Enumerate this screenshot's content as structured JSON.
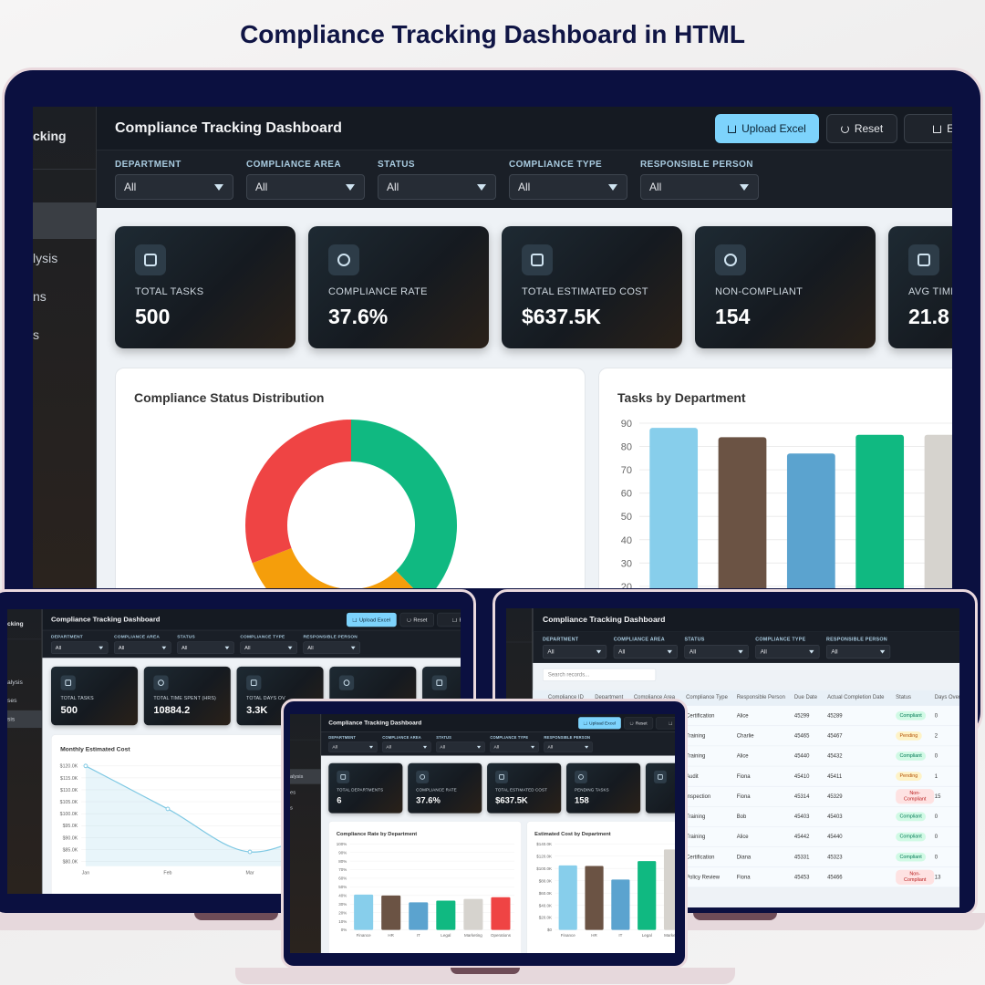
{
  "heading": "Compliance Tracking Dashboard in HTML",
  "screens": [
    {
      "sidebar": {
        "brand": "cking",
        "items": [
          "lysis",
          "ns",
          "s"
        ],
        "active": 0
      },
      "header": {
        "title": "Compliance Tracking Dashboard",
        "buttons": [
          "Upload Excel",
          "Reset",
          "Exp"
        ]
      },
      "filters": [
        {
          "label": "DEPARTMENT",
          "value": "All"
        },
        {
          "label": "COMPLIANCE AREA",
          "value": "All"
        },
        {
          "label": "STATUS",
          "value": "All"
        },
        {
          "label": "COMPLIANCE TYPE",
          "value": "All"
        },
        {
          "label": "RESPONSIBLE PERSON",
          "value": "All"
        }
      ],
      "kpis": [
        {
          "label": "TOTAL TASKS",
          "value": "500"
        },
        {
          "label": "COMPLIANCE RATE",
          "value": "37.6%"
        },
        {
          "label": "TOTAL ESTIMATED COST",
          "value": "$637.5K"
        },
        {
          "label": "NON-COMPLIANT",
          "value": "154"
        },
        {
          "label": "AVG TIME",
          "value": "21.8"
        }
      ],
      "charts": [
        {
          "type": "pie",
          "title": "Compliance Status Distribution",
          "categories": [
            null,
            null,
            null
          ],
          "values": [
            188,
            158,
            154
          ],
          "colors": [
            "#10b981",
            "#f59e0b",
            "#ef4444"
          ]
        },
        {
          "type": "bar",
          "title": "Tasks by Department",
          "categories": [
            null,
            null,
            null,
            null,
            null
          ],
          "values": [
            88,
            84,
            77,
            85,
            85
          ],
          "colors": [
            "#87ceeb",
            "#6b5344",
            "#5ba3cf",
            "#10b981",
            "#d6d3ce"
          ],
          "ylim": [
            0,
            90
          ],
          "yticks": [
            20,
            30,
            40,
            50,
            60,
            70,
            80,
            90
          ],
          "grid": true
        }
      ]
    },
    {
      "sidebar": {
        "brand": "cking",
        "items": [
          "alysis",
          "ses",
          "sis"
        ],
        "active": 3
      },
      "header": {
        "title": "Compliance Tracking Dashboard",
        "buttons": [
          "Upload Excel",
          "Reset",
          "Ex"
        ]
      },
      "filters": [
        {
          "label": "DEPARTMENT",
          "value": "All"
        },
        {
          "label": "COMPLIANCE AREA",
          "value": "All"
        },
        {
          "label": "STATUS",
          "value": "All"
        },
        {
          "label": "COMPLIANCE TYPE",
          "value": "All"
        },
        {
          "label": "RESPONSIBLE PERSON",
          "value": "All"
        }
      ],
      "kpis": [
        {
          "label": "TOTAL TASKS",
          "value": "500"
        },
        {
          "label": "TOTAL TIME SPENT (HRS)",
          "value": "10884.2"
        },
        {
          "label": "TOTAL DAYS OV",
          "value": "3.3K"
        }
      ],
      "charts": [
        {
          "type": "line",
          "title": "Monthly Estimated Cost",
          "categories": [
            "Jan",
            "Feb",
            "Mar",
            null
          ],
          "values": [
            120000,
            102000,
            84000,
            96000
          ],
          "color": "#7ec8e3",
          "ylim": [
            78000,
            122000
          ],
          "yticks": [
            {
              "value": 80000,
              "label": "$80.0K"
            },
            {
              "value": 85000,
              "label": "$85.0K"
            },
            {
              "value": 90000,
              "label": "$90.0K"
            },
            {
              "value": 95000,
              "label": "$95.0K"
            },
            {
              "value": 100000,
              "label": "$100.0K"
            },
            {
              "value": 105000,
              "label": "$105.0K"
            },
            {
              "value": 110000,
              "label": "$110.0K"
            },
            {
              "value": 115000,
              "label": "$115.0K"
            },
            {
              "value": 120000,
              "label": "$120.0K"
            }
          ],
          "grid": true
        }
      ]
    },
    {
      "header": {
        "title": "Compliance Tracking Dashboard"
      },
      "filters": [
        {
          "label": "DEPARTMENT",
          "value": "All"
        },
        {
          "label": "COMPLIANCE AREA",
          "value": "All"
        },
        {
          "label": "STATUS",
          "value": "All"
        },
        {
          "label": "COMPLIANCE TYPE",
          "value": "All"
        },
        {
          "label": "RESPONSIBLE PERSON",
          "value": "All"
        }
      ],
      "search": "Search records...",
      "table": {
        "columns": [
          "Compliance ID",
          "Department",
          "Compliance Area",
          "Compliance Type",
          "Responsible Person",
          "Due Date",
          "Actual Completion Date",
          "Status",
          "Days Over"
        ],
        "rows": [
          {
            "type": "Certification",
            "person": "Alice",
            "due_date": 45299,
            "completion_date": 45289,
            "status": "Compliant",
            "days_overdue": 0
          },
          {
            "type": "Training",
            "person": "Charlie",
            "due_date": 45465,
            "completion_date": 45467,
            "status": "Pending",
            "days_overdue": 2
          },
          {
            "type": "Training",
            "person": "Alice",
            "due_date": 45440,
            "completion_date": 45432,
            "status": "Compliant",
            "days_overdue": 0
          },
          {
            "type": "Audit",
            "person": "Fiona",
            "due_date": 45410,
            "completion_date": 45411,
            "status": "Pending",
            "days_overdue": 1
          },
          {
            "type": "Inspection",
            "person": "Fiona",
            "due_date": 45314,
            "completion_date": 45329,
            "status": "Non-Compliant",
            "days_overdue": 15
          },
          {
            "type": "Training",
            "person": "Bob",
            "due_date": 45403,
            "completion_date": 45403,
            "status": "Compliant",
            "days_overdue": 0
          },
          {
            "type": "Training",
            "person": "Alice",
            "due_date": 45442,
            "completion_date": 45440,
            "status": "Compliant",
            "days_overdue": 0
          },
          {
            "type": "Certification",
            "person": "Diana",
            "due_date": 45331,
            "completion_date": 45323,
            "status": "Compliant",
            "days_overdue": 0
          },
          {
            "type": "Policy Review",
            "person": "Fiona",
            "due_date": 45453,
            "completion_date": 45466,
            "status": "Non-Compliant",
            "days_overdue": 13
          }
        ]
      }
    },
    {
      "sidebar": {
        "items": [
          "alysis",
          "es",
          "s"
        ],
        "active": 1
      },
      "header": {
        "title": "Compliance Tracking Dashboard",
        "buttons": [
          "Upload Excel",
          "Reset",
          "Ex"
        ]
      },
      "filters": [
        {
          "label": "DEPARTMENT",
          "value": "All"
        },
        {
          "label": "COMPLIANCE AREA",
          "value": "All"
        },
        {
          "label": "STATUS",
          "value": "All"
        },
        {
          "label": "COMPLIANCE TYPE",
          "value": "All"
        },
        {
          "label": "RESPONSIBLE PERSON",
          "value": "All"
        }
      ],
      "kpis": [
        {
          "label": "TOTAL DEPARTMENTS",
          "value": "6"
        },
        {
          "label": "COMPLIANCE RATE",
          "value": "37.6%"
        },
        {
          "label": "TOTAL ESTIMATED COST",
          "value": "$637.5K"
        },
        {
          "label": "PENDING TASKS",
          "value": "158"
        }
      ],
      "charts": [
        {
          "type": "bar",
          "title": "Compliance Rate by Department",
          "categories": [
            "Finance",
            "HR",
            "IT",
            "Legal",
            "Marketing",
            "Operations"
          ],
          "values": [
            41,
            40,
            32,
            34,
            36,
            38
          ],
          "colors": [
            "#87ceeb",
            "#6b5344",
            "#5ba3cf",
            "#10b981",
            "#d6d3ce",
            "#ef4444"
          ],
          "ylim": [
            0,
            100
          ],
          "yticks": [
            {
              "value": 0,
              "label": "0%"
            },
            {
              "value": 10,
              "label": "10%"
            },
            {
              "value": 20,
              "label": "20%"
            },
            {
              "value": 30,
              "label": "30%"
            },
            {
              "value": 40,
              "label": "40%"
            },
            {
              "value": 50,
              "label": "50%"
            },
            {
              "value": 60,
              "label": "60%"
            },
            {
              "value": 70,
              "label": "70%"
            },
            {
              "value": 80,
              "label": "80%"
            },
            {
              "value": 90,
              "label": "90%"
            },
            {
              "value": 100,
              "label": "100%"
            }
          ],
          "grid": true
        },
        {
          "type": "bar",
          "title": "Estimated Cost by Department",
          "categories": [
            "Finance",
            "HR",
            "IT",
            "Legal",
            "Marketing"
          ],
          "values": [
            105000,
            104000,
            82000,
            112000,
            131000
          ],
          "colors": [
            "#87ceeb",
            "#6b5344",
            "#5ba3cf",
            "#10b981",
            "#d6d3ce"
          ],
          "ylim": [
            0,
            140000
          ],
          "yticks": [
            {
              "value": 0,
              "label": "$0"
            },
            {
              "value": 20000,
              "label": "$20.0K"
            },
            {
              "value": 40000,
              "label": "$40.0K"
            },
            {
              "value": 60000,
              "label": "$60.0K"
            },
            {
              "value": 80000,
              "label": "$80.0K"
            },
            {
              "value": 100000,
              "label": "$100.0K"
            },
            {
              "value": 120000,
              "label": "$120.0K"
            },
            {
              "value": 140000,
              "label": "$140.0K"
            }
          ],
          "grid": true
        }
      ]
    }
  ]
}
